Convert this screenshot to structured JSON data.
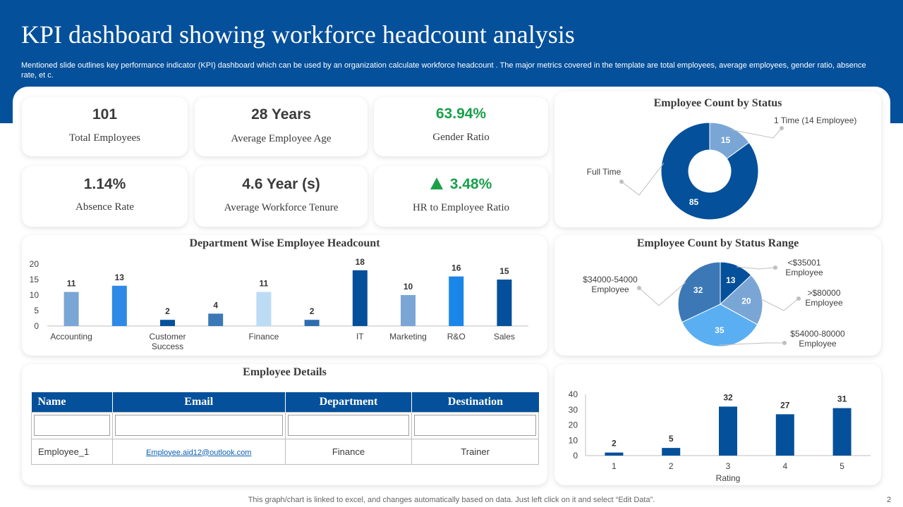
{
  "header": {
    "title": "KPI dashboard showing workforce headcount analysis",
    "subtitle": "Mentioned slide outlines key performance indicator (KPI) dashboard which can be used by an organization calculate  workforce  headcount . The major metrics covered in the template are total employees, average employees, gender ratio, absence rate, et c."
  },
  "kpis": [
    {
      "value": "101",
      "label": "Total Employees"
    },
    {
      "value": "28 Years",
      "label": "Average Employee Age"
    },
    {
      "value": "63.94%",
      "label": "Gender Ratio"
    },
    {
      "value": "1.14%",
      "label": "Absence Rate"
    },
    {
      "value": "4.6 Year (s)",
      "label": "Average Workforce Tenure"
    },
    {
      "value": "3.48%",
      "label": "HR to Employee Ratio"
    }
  ],
  "colors": {
    "brand": "#05509a",
    "positive": "#1aa04b"
  },
  "employee_details": {
    "title": "Employee Details",
    "columns": [
      "Name",
      "Email",
      "Department",
      "Destination"
    ],
    "rows": [
      {
        "name": "Employee_1",
        "email": "Employee.aid12@outlook.com",
        "department": "Finance",
        "destination": "Trainer"
      }
    ]
  },
  "chart_data": [
    {
      "type": "bar",
      "title": "Department Wise Employee Headcount",
      "categories": [
        "Accounting",
        "",
        "Customer Success",
        "",
        "Finance",
        "",
        "IT",
        "Marketing",
        "R&O",
        "Sales"
      ],
      "values": [
        11,
        13,
        2,
        4,
        11,
        2,
        18,
        10,
        16,
        15
      ],
      "colors": [
        "#7aa6d6",
        "#2e8ae6",
        "#05509a",
        "#3c78b5",
        "#bcdcf6",
        "#2d6eae",
        "#05509a",
        "#7aa6d6",
        "#1a86e8",
        "#05509a"
      ],
      "ylim": [
        0,
        20
      ],
      "yticks": [
        0,
        5,
        10,
        15,
        20
      ],
      "grid": false,
      "data_labels": true
    },
    {
      "type": "pie",
      "donut": true,
      "title": "Employee Count by Status",
      "slices": [
        {
          "label": "1 Time (14 Employee)",
          "value": 15,
          "color": "#7aa6d6"
        },
        {
          "label": "Full Time",
          "value": 85,
          "color": "#05509a"
        }
      ]
    },
    {
      "type": "pie",
      "title": "Employee Count by Status Range",
      "slices": [
        {
          "label": "<$35001 Employee",
          "value": 13,
          "color": "#05509a"
        },
        {
          "label": ">$80000 Employee",
          "value": 20,
          "color": "#7aa6d6"
        },
        {
          "label": "$54000-80000 Employee",
          "value": 35,
          "color": "#5aaef2"
        },
        {
          "label": "$34000-54000 Employee",
          "value": 32,
          "color": "#3c78b5"
        }
      ]
    },
    {
      "type": "bar",
      "title": "",
      "xlabel": "Rating",
      "categories": [
        "1",
        "2",
        "3",
        "4",
        "5"
      ],
      "values": [
        2,
        5,
        32,
        27,
        31
      ],
      "color": "#05509a",
      "ylim": [
        0,
        40
      ],
      "yticks": [
        0,
        10,
        20,
        30,
        40
      ],
      "grid": false,
      "data_labels": true
    }
  ],
  "footer": {
    "note": "This graph/chart is linked to excel,  and changes automatically based on data. Just left click on it and select “Edit Data”.",
    "page_number": "2"
  }
}
